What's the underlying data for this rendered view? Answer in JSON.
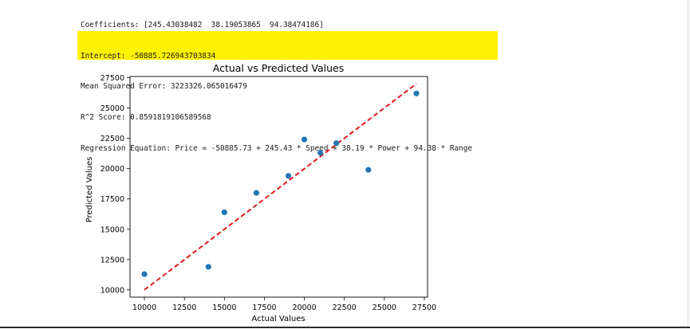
{
  "console": {
    "line1": "Coefficients: [245.43038482  38.19053865  94.38474186]",
    "line2": "Intercept: -50885.726943703834",
    "line3": "Mean Squared Error: 3223326.065016479",
    "line4": "R^2 Score: 0.8591819106589568",
    "line5": "Regression Equation: Price = -50885.73 + 245.43 * Speed + 38.19 * Power + 94.38 * Range",
    "highlight_color": "#fff200"
  },
  "chart_data": {
    "type": "scatter",
    "title": "Actual vs Predicted Values",
    "xlabel": "Actual Values",
    "ylabel": "Predicted Values",
    "xlim": [
      9100,
      27700
    ],
    "ylim": [
      9400,
      27600
    ],
    "x_ticks": [
      10000,
      12500,
      15000,
      17500,
      20000,
      22500,
      25000,
      27500
    ],
    "y_ticks": [
      10000,
      12500,
      15000,
      17500,
      20000,
      22500,
      25000,
      27500
    ],
    "grid": false,
    "series": [
      {
        "color": "#1f77b4",
        "points": [
          {
            "x": 10000,
            "y": 11300
          },
          {
            "x": 14000,
            "y": 11900
          },
          {
            "x": 15000,
            "y": 16400
          },
          {
            "x": 17000,
            "y": 18000
          },
          {
            "x": 19000,
            "y": 19400
          },
          {
            "x": 20000,
            "y": 22400
          },
          {
            "x": 21000,
            "y": 21300
          },
          {
            "x": 22000,
            "y": 22100
          },
          {
            "x": 24000,
            "y": 19900
          },
          {
            "x": 27000,
            "y": 26200
          }
        ]
      }
    ],
    "reference_line": {
      "style": "dashed",
      "color": "#e31a1c",
      "from": {
        "x": 10000,
        "y": 10000
      },
      "to": {
        "x": 27000,
        "y": 27000
      }
    }
  }
}
